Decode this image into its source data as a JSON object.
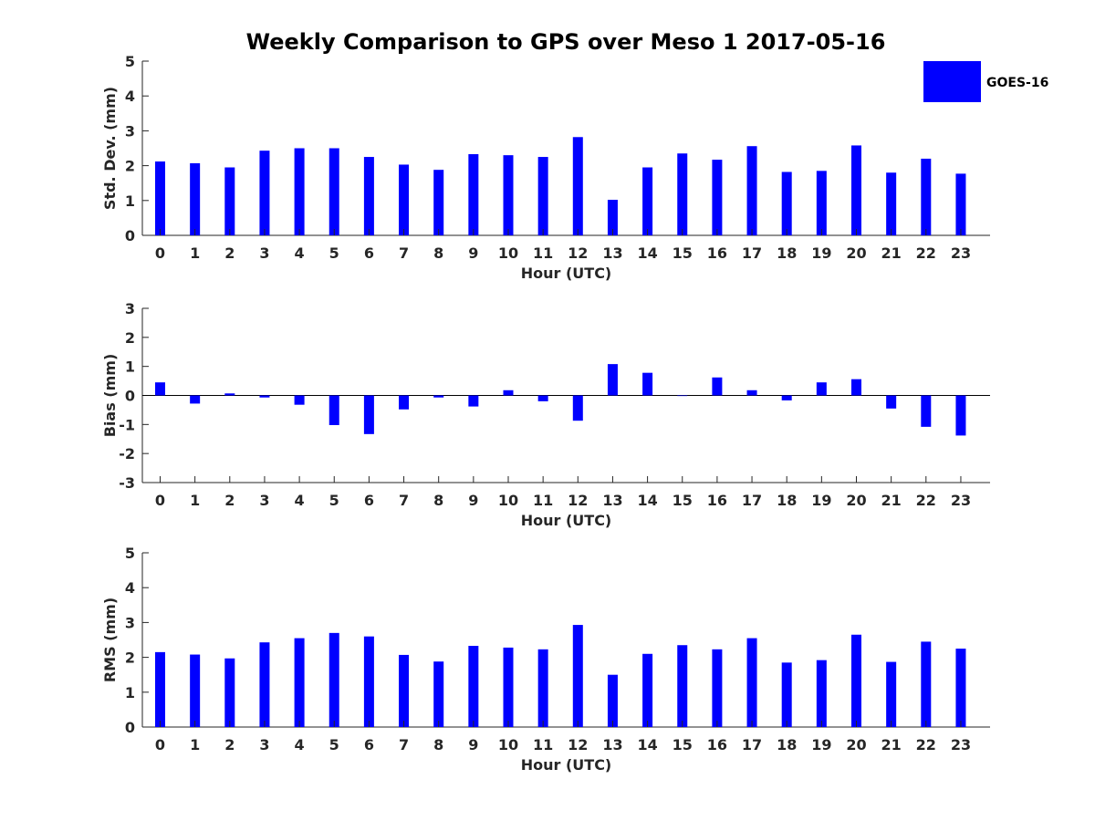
{
  "title": "Weekly Comparison to GPS over Meso 1 2017-05-16",
  "legend": {
    "label": "GOES-16",
    "color": "#0000ff"
  },
  "chart_data": [
    {
      "type": "bar",
      "categories": [
        "0",
        "1",
        "2",
        "3",
        "4",
        "5",
        "6",
        "7",
        "8",
        "9",
        "10",
        "11",
        "12",
        "13",
        "14",
        "15",
        "16",
        "17",
        "18",
        "19",
        "20",
        "21",
        "22",
        "23"
      ],
      "series": [
        {
          "name": "GOES-16",
          "values": [
            2.12,
            2.07,
            1.95,
            2.43,
            2.5,
            2.5,
            2.25,
            2.03,
            1.88,
            2.33,
            2.3,
            2.25,
            2.82,
            1.02,
            1.95,
            2.35,
            2.17,
            2.56,
            1.82,
            1.85,
            2.58,
            1.8,
            2.2,
            1.77
          ]
        }
      ],
      "xlabel": "Hour (UTC)",
      "ylabel": "Std. Dev. (mm)",
      "ylim": [
        0,
        5
      ],
      "yticks": [
        "0",
        "1",
        "2",
        "3",
        "4",
        "5"
      ]
    },
    {
      "type": "bar",
      "categories": [
        "0",
        "1",
        "2",
        "3",
        "4",
        "5",
        "6",
        "7",
        "8",
        "9",
        "10",
        "11",
        "12",
        "13",
        "14",
        "15",
        "16",
        "17",
        "18",
        "19",
        "20",
        "21",
        "22",
        "23"
      ],
      "series": [
        {
          "name": "GOES-16",
          "values": [
            0.45,
            -0.28,
            0.07,
            -0.07,
            -0.32,
            -1.02,
            -1.33,
            -0.48,
            -0.07,
            -0.38,
            0.18,
            -0.2,
            -0.87,
            1.08,
            0.78,
            -0.02,
            0.62,
            0.18,
            -0.17,
            0.45,
            0.56,
            -0.45,
            -1.08,
            -1.38
          ]
        }
      ],
      "xlabel": "Hour (UTC)",
      "ylabel": "Bias (mm)",
      "ylim": [
        -3,
        3
      ],
      "yticks": [
        "-3",
        "-2",
        "-1",
        "0",
        "1",
        "2",
        "3"
      ]
    },
    {
      "type": "bar",
      "categories": [
        "0",
        "1",
        "2",
        "3",
        "4",
        "5",
        "6",
        "7",
        "8",
        "9",
        "10",
        "11",
        "12",
        "13",
        "14",
        "15",
        "16",
        "17",
        "18",
        "19",
        "20",
        "21",
        "22",
        "23"
      ],
      "series": [
        {
          "name": "GOES-16",
          "values": [
            2.15,
            2.08,
            1.97,
            2.43,
            2.55,
            2.7,
            2.6,
            2.07,
            1.88,
            2.33,
            2.28,
            2.23,
            2.93,
            1.5,
            2.1,
            2.35,
            2.23,
            2.55,
            1.85,
            1.92,
            2.65,
            1.87,
            2.45,
            2.25
          ]
        }
      ],
      "xlabel": "Hour (UTC)",
      "ylabel": "RMS (mm)",
      "ylim": [
        0,
        5
      ],
      "yticks": [
        "0",
        "1",
        "2",
        "3",
        "4",
        "5"
      ]
    }
  ]
}
